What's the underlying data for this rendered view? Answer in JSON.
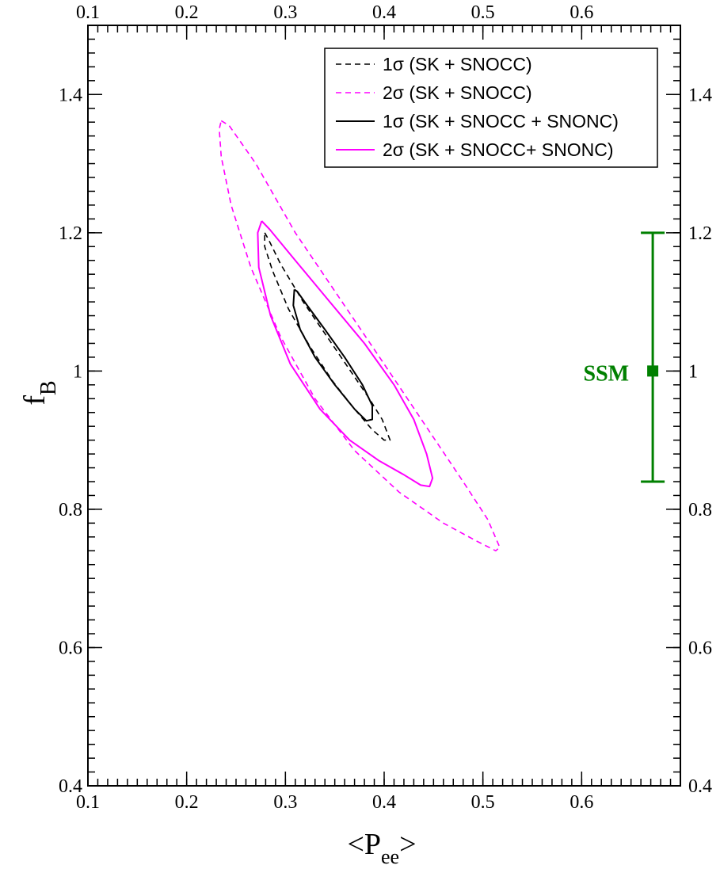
{
  "chart_data": {
    "type": "line",
    "title": "",
    "xlabel": {
      "main": "<P",
      "sub": "ee",
      "tail": ">"
    },
    "ylabel": {
      "main": "f",
      "sub": "B"
    },
    "xlim": [
      0.1,
      0.7
    ],
    "ylim": [
      0.4,
      1.5
    ],
    "xticks_major": [
      0.1,
      0.2,
      0.3,
      0.4,
      0.5,
      0.6
    ],
    "xtick_labels": [
      "0.1",
      "0.2",
      "0.3",
      "0.4",
      "0.5",
      "0.6"
    ],
    "xticks_minor_step": 0.01,
    "yticks_major": [
      0.4,
      0.6,
      0.8,
      1.0,
      1.2,
      1.4
    ],
    "ytick_labels": [
      "0.4",
      "0.6",
      "0.8",
      "1",
      "1.2",
      "1.4"
    ],
    "yticks_minor_step": 0.02,
    "grid": false,
    "legend_position": "top-right",
    "series": [
      {
        "name": "1σ (SK + SNOCC)",
        "color": "#000000",
        "dash": "dashed",
        "points": [
          [
            0.279,
            1.2
          ],
          [
            0.283,
            1.19
          ],
          [
            0.295,
            1.155
          ],
          [
            0.318,
            1.1
          ],
          [
            0.342,
            1.05
          ],
          [
            0.366,
            1.0
          ],
          [
            0.385,
            0.96
          ],
          [
            0.398,
            0.93
          ],
          [
            0.406,
            0.9
          ],
          [
            0.4,
            0.9
          ],
          [
            0.388,
            0.915
          ],
          [
            0.37,
            0.945
          ],
          [
            0.348,
            0.985
          ],
          [
            0.325,
            1.035
          ],
          [
            0.303,
            1.09
          ],
          [
            0.287,
            1.145
          ],
          [
            0.279,
            1.18
          ],
          [
            0.279,
            1.2
          ]
        ]
      },
      {
        "name": "2σ (SK + SNOCC)",
        "color": "#ff00ff",
        "dash": "dashed",
        "points": [
          [
            0.235,
            1.362
          ],
          [
            0.243,
            1.355
          ],
          [
            0.27,
            1.3
          ],
          [
            0.31,
            1.2
          ],
          [
            0.355,
            1.105
          ],
          [
            0.4,
            1.01
          ],
          [
            0.44,
            0.925
          ],
          [
            0.48,
            0.84
          ],
          [
            0.505,
            0.785
          ],
          [
            0.517,
            0.745
          ],
          [
            0.513,
            0.74
          ],
          [
            0.495,
            0.753
          ],
          [
            0.46,
            0.78
          ],
          [
            0.415,
            0.825
          ],
          [
            0.37,
            0.885
          ],
          [
            0.33,
            0.96
          ],
          [
            0.295,
            1.05
          ],
          [
            0.265,
            1.15
          ],
          [
            0.245,
            1.24
          ],
          [
            0.235,
            1.31
          ],
          [
            0.233,
            1.35
          ],
          [
            0.235,
            1.362
          ]
        ]
      },
      {
        "name": "1σ (SK + SNOCC + SNONC)",
        "color": "#000000",
        "dash": "solid",
        "points": [
          [
            0.309,
            1.118
          ],
          [
            0.312,
            1.115
          ],
          [
            0.322,
            1.095
          ],
          [
            0.34,
            1.06
          ],
          [
            0.36,
            1.02
          ],
          [
            0.378,
            0.98
          ],
          [
            0.388,
            0.95
          ],
          [
            0.388,
            0.93
          ],
          [
            0.382,
            0.928
          ],
          [
            0.37,
            0.945
          ],
          [
            0.35,
            0.98
          ],
          [
            0.33,
            1.02
          ],
          [
            0.315,
            1.06
          ],
          [
            0.308,
            1.095
          ],
          [
            0.309,
            1.118
          ]
        ]
      },
      {
        "name": "2σ (SK + SNOCC+ SNONC)",
        "color": "#ff00ff",
        "dash": "solid",
        "points": [
          [
            0.276,
            1.217
          ],
          [
            0.284,
            1.205
          ],
          [
            0.31,
            1.16
          ],
          [
            0.345,
            1.1
          ],
          [
            0.38,
            1.04
          ],
          [
            0.41,
            0.98
          ],
          [
            0.43,
            0.93
          ],
          [
            0.443,
            0.88
          ],
          [
            0.449,
            0.845
          ],
          [
            0.446,
            0.833
          ],
          [
            0.437,
            0.835
          ],
          [
            0.42,
            0.85
          ],
          [
            0.395,
            0.87
          ],
          [
            0.365,
            0.9
          ],
          [
            0.335,
            0.945
          ],
          [
            0.305,
            1.01
          ],
          [
            0.285,
            1.08
          ],
          [
            0.273,
            1.15
          ],
          [
            0.272,
            1.2
          ],
          [
            0.276,
            1.217
          ]
        ]
      }
    ],
    "annotation": {
      "label": "SSM",
      "color": "#008000",
      "x": 0.672,
      "y": 1.0,
      "y_low": 0.84,
      "y_high": 1.2
    }
  }
}
